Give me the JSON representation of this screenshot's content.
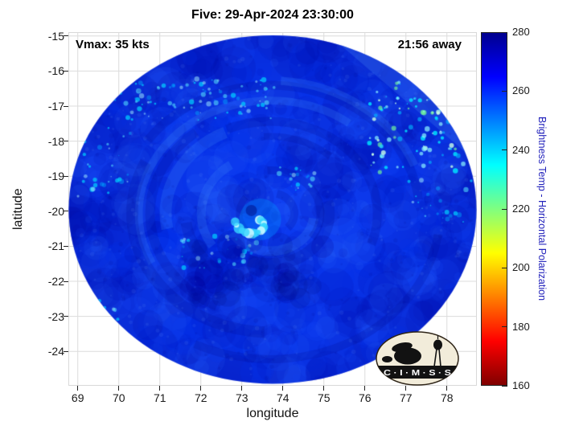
{
  "title": "Five: 29-Apr-2024 23:30:00",
  "annotations": {
    "vmax": "Vmax: 35 kts",
    "time_away": "21:56 away"
  },
  "axes": {
    "xlabel": "longitude",
    "ylabel": "latitude"
  },
  "colorbar": {
    "label": "Brightness Temp - Horizontal Polarization"
  },
  "logo": {
    "text": "C · I · M · S · S"
  },
  "chart_data": {
    "type": "heatmap",
    "title": "Five: 29-Apr-2024 23:30:00",
    "xlabel": "longitude",
    "ylabel": "latitude",
    "xlim": [
      68.77,
      78.73
    ],
    "ylim": [
      -24.98,
      -14.89
    ],
    "xticks": [
      69,
      70,
      71,
      72,
      73,
      74,
      75,
      76,
      77,
      78
    ],
    "yticks": [
      -15,
      -16,
      -17,
      -18,
      -19,
      -20,
      -21,
      -22,
      -23,
      -24
    ],
    "grid": true,
    "annotations": [
      "Vmax: 35 kts",
      "21:56 away"
    ],
    "colorbar": {
      "label": "Brightness Temp - Horizontal Polarization",
      "min": 160,
      "max": 280,
      "ticks": [
        280,
        260,
        240,
        220,
        200,
        180,
        160
      ],
      "colormap": "jet reversed (280=dark blue at top, 160=dark red at bottom)",
      "stops_top_to_bottom": [
        {
          "pos": 0.0,
          "color": "#00008f"
        },
        {
          "pos": 0.125,
          "color": "#0000ff"
        },
        {
          "pos": 0.375,
          "color": "#00ffff"
        },
        {
          "pos": 0.625,
          "color": "#ffff00"
        },
        {
          "pos": 0.875,
          "color": "#ff0000"
        },
        {
          "pos": 1.0,
          "color": "#800000"
        }
      ]
    },
    "swath": {
      "shape": "circular microwave satellite swath over tropical cyclone Five",
      "center_lon": 73.75,
      "center_lat": -19.95,
      "radius_lon": 4.97,
      "radius_lat": 4.97,
      "background_temp_K": 258,
      "eye_lon": 73.35,
      "eye_lat": -20.3,
      "eye_feature_temp_K": 238,
      "seam": {
        "from_lon": 75.1,
        "from_lat": -14.95,
        "to_lon": 78.73,
        "to_lat": -18.6
      }
    },
    "features": [
      {
        "name": "nw-speckle-band",
        "lon": [
          69.9,
          73.8
        ],
        "lat": [
          -17.4,
          -16.2
        ],
        "count": 90,
        "temp_K": 245
      },
      {
        "name": "west-speckles",
        "lon": [
          69.0,
          70.4
        ],
        "lat": [
          -19.6,
          -17.6
        ],
        "count": 30,
        "temp_K": 250
      },
      {
        "name": "ne-speckle-cluster",
        "lon": [
          76.1,
          78.5
        ],
        "lat": [
          -18.9,
          -16.2
        ],
        "count": 120,
        "temp_K": 240,
        "bright": true
      },
      {
        "name": "east-speckles",
        "lon": [
          77.0,
          78.6
        ],
        "lat": [
          -20.4,
          -19.1
        ],
        "count": 22,
        "temp_K": 248
      },
      {
        "name": "inner-ne-speckles",
        "lon": [
          73.9,
          74.8
        ],
        "lat": [
          -19.4,
          -18.7
        ],
        "count": 18,
        "temp_K": 244
      },
      {
        "name": "south-speckles",
        "lon": [
          71.4,
          73.4
        ],
        "lat": [
          -21.7,
          -20.7
        ],
        "count": 28,
        "temp_K": 247
      },
      {
        "name": "sw-edge-speckles",
        "lon": [
          69.3,
          70.0
        ],
        "lat": [
          -23.2,
          -22.5
        ],
        "count": 10,
        "temp_K": 246
      },
      {
        "name": "south-dark-region",
        "lon": [
          71.8,
          75.2
        ],
        "lat": [
          -22.6,
          -20.9
        ],
        "count": 40,
        "temp_K": 265,
        "dark": true
      }
    ]
  }
}
